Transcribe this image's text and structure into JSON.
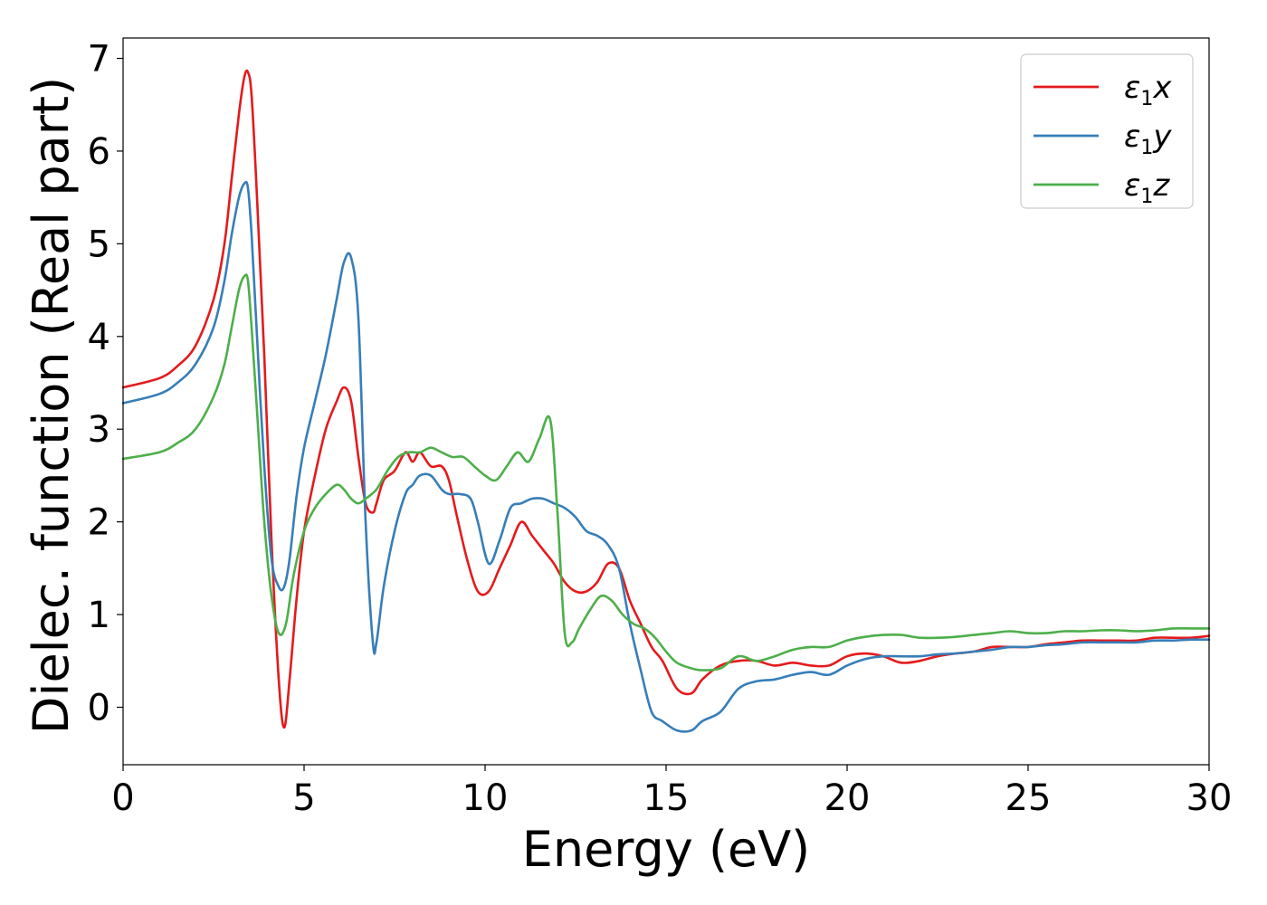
{
  "chart_data": {
    "type": "line",
    "title": "",
    "xlabel": "Energy (eV)",
    "ylabel": "Dielec. function (Real part)",
    "xlim": [
      0,
      30
    ],
    "ylim": [
      -0.62,
      7.22
    ],
    "xticks": [
      0,
      5,
      10,
      15,
      20,
      25,
      30
    ],
    "yticks": [
      0,
      1,
      2,
      3,
      4,
      5,
      6,
      7
    ],
    "grid": false,
    "legend_position": "top-right",
    "series": [
      {
        "name": "ε₁x",
        "legend_main": "ε",
        "legend_sub": "1",
        "legend_axis": "x",
        "color": "#e41a1c",
        "x": [
          0,
          1,
          1.5,
          2,
          2.5,
          2.8,
          3.0,
          3.2,
          3.35,
          3.45,
          3.55,
          3.7,
          3.9,
          4.1,
          4.3,
          4.45,
          4.6,
          4.8,
          5.0,
          5.3,
          5.6,
          5.9,
          6.1,
          6.3,
          6.5,
          6.7,
          6.9,
          7.0,
          7.2,
          7.5,
          7.8,
          8.0,
          8.2,
          8.5,
          8.8,
          9.0,
          9.2,
          9.5,
          9.8,
          10.1,
          10.4,
          10.7,
          11.0,
          11.3,
          11.6,
          11.9,
          12.2,
          12.5,
          12.8,
          13.1,
          13.4,
          13.7,
          14.0,
          14.3,
          14.6,
          14.9,
          15.3,
          15.7,
          16.0,
          16.5,
          17.0,
          17.5,
          18.0,
          18.5,
          19.0,
          19.5,
          20.0,
          20.5,
          21.0,
          21.5,
          22.0,
          22.5,
          23.0,
          23.5,
          24.0,
          24.5,
          25.0,
          25.5,
          26.0,
          26.5,
          27.0,
          27.5,
          28.0,
          28.5,
          29.0,
          29.5,
          30.0
        ],
        "values": [
          3.45,
          3.55,
          3.68,
          3.9,
          4.4,
          5.0,
          5.7,
          6.4,
          6.8,
          6.85,
          6.6,
          5.5,
          3.8,
          1.8,
          0.3,
          -0.22,
          0.3,
          1.2,
          1.9,
          2.5,
          3.0,
          3.3,
          3.45,
          3.3,
          2.7,
          2.2,
          2.1,
          2.2,
          2.45,
          2.55,
          2.75,
          2.65,
          2.75,
          2.6,
          2.6,
          2.45,
          2.1,
          1.6,
          1.25,
          1.25,
          1.5,
          1.75,
          2.0,
          1.85,
          1.7,
          1.55,
          1.35,
          1.25,
          1.25,
          1.35,
          1.55,
          1.5,
          1.15,
          0.9,
          0.65,
          0.5,
          0.2,
          0.15,
          0.3,
          0.45,
          0.5,
          0.5,
          0.45,
          0.48,
          0.45,
          0.45,
          0.55,
          0.58,
          0.55,
          0.48,
          0.5,
          0.55,
          0.58,
          0.6,
          0.65,
          0.65,
          0.65,
          0.68,
          0.7,
          0.72,
          0.72,
          0.72,
          0.72,
          0.75,
          0.75,
          0.75,
          0.77
        ]
      },
      {
        "name": "ε₁y",
        "legend_main": "ε",
        "legend_sub": "1",
        "legend_axis": "y",
        "color": "#377eb8",
        "x": [
          0,
          1,
          1.5,
          2,
          2.5,
          2.8,
          3.0,
          3.2,
          3.35,
          3.45,
          3.55,
          3.7,
          3.9,
          4.1,
          4.3,
          4.45,
          4.6,
          4.8,
          5.0,
          5.3,
          5.6,
          5.9,
          6.1,
          6.3,
          6.5,
          6.7,
          6.9,
          7.0,
          7.2,
          7.5,
          7.8,
          8.0,
          8.2,
          8.5,
          8.8,
          9.0,
          9.3,
          9.6,
          9.8,
          10.1,
          10.4,
          10.7,
          11.0,
          11.3,
          11.6,
          11.9,
          12.2,
          12.5,
          12.8,
          13.1,
          13.4,
          13.7,
          14.0,
          14.3,
          14.6,
          14.9,
          15.3,
          15.7,
          16.0,
          16.5,
          17.0,
          17.5,
          18.0,
          18.5,
          19.0,
          19.5,
          20.0,
          20.5,
          21.0,
          21.5,
          22.0,
          22.5,
          23.0,
          23.5,
          24.0,
          24.5,
          25.0,
          25.5,
          26.0,
          26.5,
          27.0,
          27.5,
          28.0,
          28.5,
          29.0,
          29.5,
          30.0
        ],
        "values": [
          3.28,
          3.38,
          3.5,
          3.7,
          4.1,
          4.6,
          5.1,
          5.5,
          5.65,
          5.6,
          5.1,
          4.0,
          2.6,
          1.6,
          1.3,
          1.3,
          1.6,
          2.3,
          2.8,
          3.3,
          3.8,
          4.4,
          4.8,
          4.85,
          4.2,
          2.0,
          0.7,
          0.7,
          1.3,
          1.9,
          2.3,
          2.4,
          2.5,
          2.5,
          2.35,
          2.3,
          2.3,
          2.25,
          2.0,
          1.55,
          1.8,
          2.15,
          2.2,
          2.25,
          2.25,
          2.2,
          2.15,
          2.05,
          1.9,
          1.85,
          1.75,
          1.5,
          0.9,
          0.4,
          -0.05,
          -0.15,
          -0.25,
          -0.25,
          -0.15,
          -0.05,
          0.2,
          0.28,
          0.3,
          0.35,
          0.38,
          0.35,
          0.45,
          0.52,
          0.55,
          0.55,
          0.55,
          0.57,
          0.58,
          0.6,
          0.62,
          0.65,
          0.65,
          0.67,
          0.68,
          0.7,
          0.7,
          0.7,
          0.7,
          0.72,
          0.72,
          0.73,
          0.73
        ]
      },
      {
        "name": "ε₁z",
        "legend_main": "ε",
        "legend_sub": "1",
        "legend_axis": "z",
        "color": "#4daf4a",
        "x": [
          0,
          1,
          1.5,
          2,
          2.5,
          2.8,
          3.0,
          3.2,
          3.35,
          3.45,
          3.55,
          3.7,
          3.9,
          4.1,
          4.3,
          4.5,
          4.7,
          5.0,
          5.3,
          5.6,
          5.9,
          6.1,
          6.3,
          6.5,
          6.7,
          7.0,
          7.3,
          7.6,
          7.9,
          8.2,
          8.5,
          8.8,
          9.1,
          9.4,
          9.7,
          10.0,
          10.3,
          10.6,
          10.9,
          11.2,
          11.5,
          11.8,
          12.0,
          12.2,
          12.4,
          12.6,
          12.9,
          13.2,
          13.5,
          13.8,
          14.1,
          14.4,
          14.7,
          15.0,
          15.3,
          15.7,
          16.0,
          16.5,
          17.0,
          17.5,
          18.0,
          18.5,
          19.0,
          19.5,
          20.0,
          20.5,
          21.0,
          21.5,
          22.0,
          22.5,
          23.0,
          23.5,
          24.0,
          24.5,
          25.0,
          25.5,
          26.0,
          26.5,
          27.0,
          27.5,
          28.0,
          28.5,
          29.0,
          29.5,
          30.0
        ],
        "values": [
          2.68,
          2.75,
          2.85,
          3.0,
          3.35,
          3.7,
          4.1,
          4.5,
          4.65,
          4.6,
          4.1,
          3.2,
          2.0,
          1.2,
          0.8,
          0.9,
          1.4,
          1.9,
          2.15,
          2.3,
          2.4,
          2.35,
          2.25,
          2.2,
          2.25,
          2.35,
          2.55,
          2.7,
          2.75,
          2.75,
          2.8,
          2.75,
          2.7,
          2.7,
          2.6,
          2.5,
          2.45,
          2.6,
          2.75,
          2.65,
          2.9,
          3.1,
          2.1,
          0.8,
          0.7,
          0.85,
          1.05,
          1.2,
          1.15,
          1.0,
          0.9,
          0.85,
          0.75,
          0.6,
          0.48,
          0.42,
          0.4,
          0.42,
          0.55,
          0.5,
          0.55,
          0.62,
          0.65,
          0.65,
          0.72,
          0.76,
          0.78,
          0.78,
          0.75,
          0.75,
          0.76,
          0.78,
          0.8,
          0.82,
          0.8,
          0.8,
          0.82,
          0.82,
          0.83,
          0.83,
          0.82,
          0.83,
          0.85,
          0.85,
          0.85
        ]
      }
    ]
  }
}
